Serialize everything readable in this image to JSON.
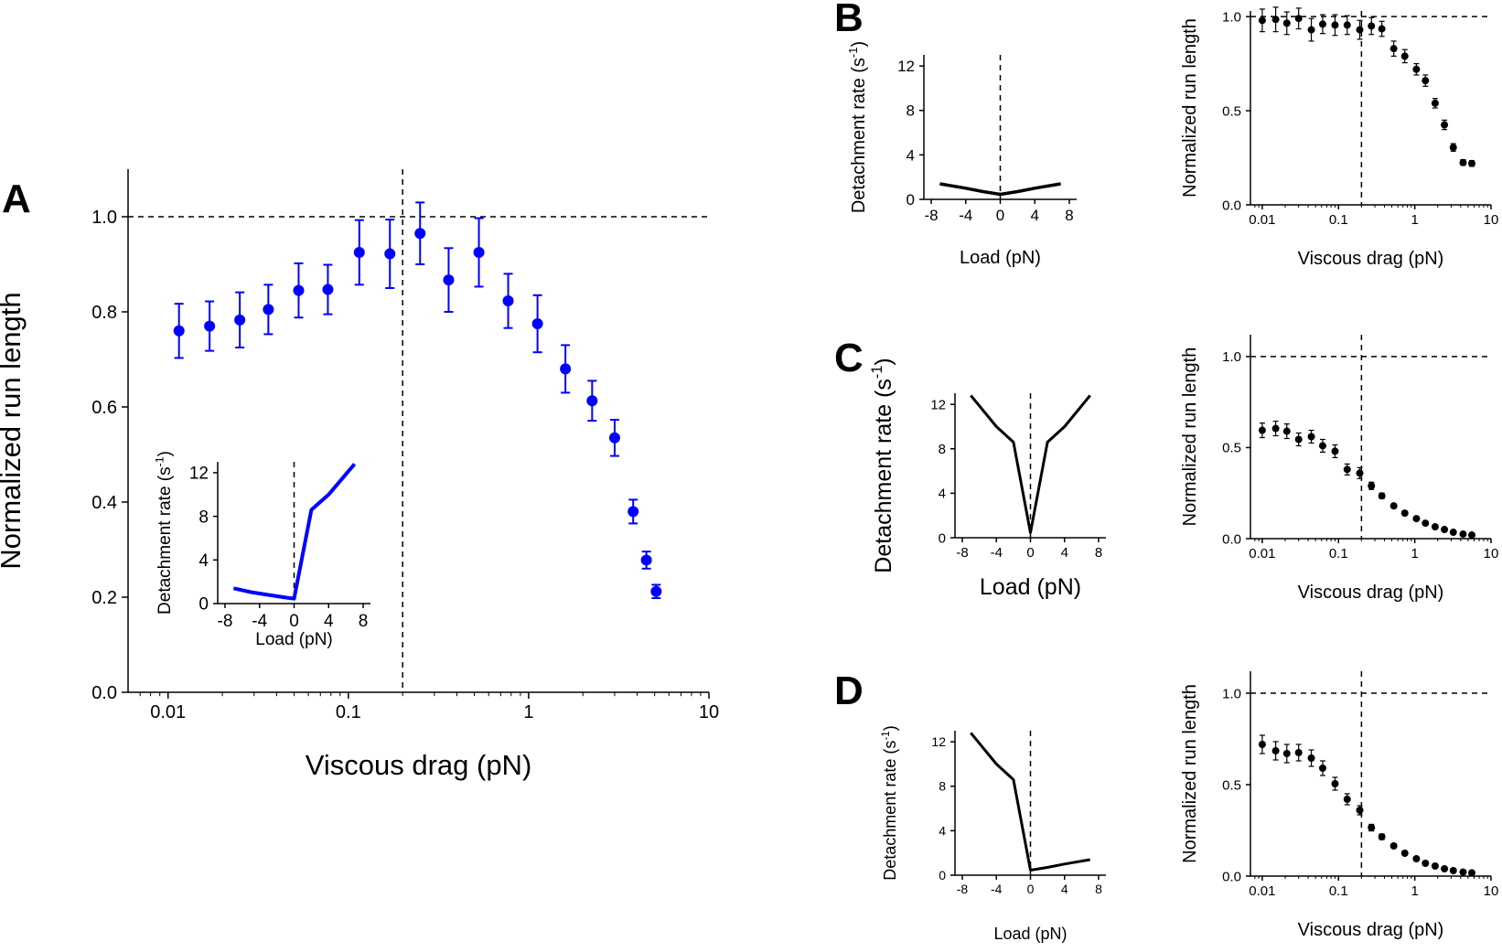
{
  "figure": {
    "panel_labels": [
      "A",
      "B",
      "C",
      "D"
    ]
  },
  "chart_data": [
    {
      "id": "A-main",
      "panel": "A",
      "type": "scatter",
      "color": "#0000ff",
      "title": "",
      "xlabel": "Viscous drag (pN)",
      "ylabel": "Normalized run length",
      "xscale": "log",
      "xlim": [
        0.006,
        10
      ],
      "ylim": [
        0,
        1.1
      ],
      "xticks": [
        0.01,
        0.1,
        1,
        10
      ],
      "xtick_labels": [
        "0.01",
        "0.1",
        "1",
        "10"
      ],
      "yticks": [
        0,
        0.2,
        0.4,
        0.6,
        0.8,
        1.0
      ],
      "ytick_labels": [
        "0.0",
        "0.2",
        "0.4",
        "0.6",
        "0.8",
        "1.0"
      ],
      "hline": 1.0,
      "vline": 0.2,
      "x": [
        0.0115,
        0.017,
        0.025,
        0.036,
        0.053,
        0.077,
        0.115,
        0.17,
        0.25,
        0.36,
        0.53,
        0.77,
        1.12,
        1.6,
        2.25,
        3.0,
        3.8,
        4.5,
        5.1
      ],
      "y": [
        0.76,
        0.77,
        0.783,
        0.805,
        0.845,
        0.847,
        0.925,
        0.922,
        0.965,
        0.867,
        0.925,
        0.823,
        0.775,
        0.68,
        0.613,
        0.535,
        0.38,
        0.278,
        0.212
      ],
      "err": [
        0.057,
        0.052,
        0.058,
        0.052,
        0.057,
        0.052,
        0.068,
        0.072,
        0.065,
        0.067,
        0.072,
        0.057,
        0.06,
        0.05,
        0.042,
        0.038,
        0.025,
        0.018,
        0.014
      ]
    },
    {
      "id": "A-inset",
      "panel": "A",
      "type": "line",
      "color": "#0000ff",
      "xlabel": "Load (pN)",
      "ylabel": "Detachment rate (s",
      "ylabel_sup": "-1",
      "ylabel_end": ")",
      "xlim": [
        -8,
        8
      ],
      "ylim": [
        0,
        13
      ],
      "xticks": [
        -8,
        -4,
        0,
        4,
        8
      ],
      "xtick_labels": [
        "-8",
        "-4",
        "0",
        "4",
        "8"
      ],
      "yticks": [
        0,
        4,
        8,
        12
      ],
      "ytick_labels": [
        "0",
        "4",
        "8",
        "12"
      ],
      "vline": 0,
      "x": [
        -7,
        -5,
        -3,
        -1,
        0,
        2,
        4,
        7
      ],
      "y": [
        1.4,
        1.05,
        0.8,
        0.55,
        0.45,
        8.6,
        10.0,
        12.8
      ]
    },
    {
      "id": "B-rate",
      "panel": "B",
      "type": "line",
      "color": "#000000",
      "xlabel": "Load (pN)",
      "ylabel": "Detachment rate (s",
      "ylabel_sup": "-1",
      "ylabel_end": ")",
      "xlim": [
        -8,
        8
      ],
      "ylim": [
        0,
        13
      ],
      "xticks": [
        -8,
        -4,
        0,
        4,
        8
      ],
      "xtick_labels": [
        "-8",
        "-4",
        "0",
        "4",
        "8"
      ],
      "yticks": [
        0,
        4,
        8,
        12
      ],
      "ytick_labels": [
        "0",
        "4",
        "8",
        "12"
      ],
      "vline": 0,
      "x": [
        -7,
        -4,
        -2,
        0,
        2,
        4,
        7
      ],
      "y": [
        1.4,
        1.0,
        0.7,
        0.45,
        0.7,
        1.0,
        1.4
      ]
    },
    {
      "id": "B-run",
      "panel": "B",
      "type": "scatter",
      "color": "#000000",
      "xlabel": "Viscous drag (pN)",
      "ylabel": "Normalized run length",
      "xscale": "log",
      "xlim": [
        0.007,
        10
      ],
      "ylim": [
        0,
        1.03
      ],
      "xticks": [
        0.01,
        0.1,
        1,
        10
      ],
      "xtick_labels": [
        "0.01",
        "0.1",
        "1",
        "10"
      ],
      "yticks": [
        0,
        0.5,
        1.0
      ],
      "ytick_labels": [
        "0.0",
        "0.5",
        "1.0"
      ],
      "hline": 1.0,
      "vline": 0.2,
      "x": [
        0.01,
        0.015,
        0.021,
        0.03,
        0.044,
        0.062,
        0.09,
        0.13,
        0.19,
        0.27,
        0.37,
        0.53,
        0.74,
        1.05,
        1.38,
        1.85,
        2.45,
        3.2,
        4.3,
        5.6
      ],
      "y": [
        0.98,
        0.985,
        0.965,
        0.99,
        0.93,
        0.96,
        0.955,
        0.955,
        0.93,
        0.95,
        0.935,
        0.83,
        0.79,
        0.72,
        0.66,
        0.54,
        0.425,
        0.305,
        0.225,
        0.22
      ],
      "err": [
        0.06,
        0.065,
        0.06,
        0.055,
        0.06,
        0.05,
        0.055,
        0.05,
        0.05,
        0.045,
        0.04,
        0.04,
        0.035,
        0.03,
        0.03,
        0.025,
        0.025,
        0.02,
        0.015,
        0.015
      ]
    },
    {
      "id": "C-rate",
      "panel": "C",
      "type": "line",
      "color": "#000000",
      "xlabel": "Load (pN)",
      "ylabel": "Detachment rate (s",
      "ylabel_sup": "-1",
      "ylabel_end": ")",
      "xlim": [
        -8,
        8
      ],
      "ylim": [
        0,
        13
      ],
      "xticks": [
        -8,
        -4,
        0,
        4,
        8
      ],
      "xtick_labels": [
        "-8",
        "-4",
        "0",
        "4",
        "8"
      ],
      "yticks": [
        0,
        4,
        8,
        12
      ],
      "ytick_labels": [
        "0",
        "4",
        "8",
        "12"
      ],
      "vline": 0,
      "x": [
        -7,
        -4,
        -2,
        0,
        2,
        4,
        7
      ],
      "y": [
        12.8,
        10.0,
        8.6,
        0.45,
        8.6,
        10.0,
        12.8
      ]
    },
    {
      "id": "C-run",
      "panel": "C",
      "type": "scatter",
      "color": "#000000",
      "xlabel": "Viscous drag (pN)",
      "ylabel": "Normalized run length",
      "xscale": "log",
      "xlim": [
        0.007,
        10
      ],
      "ylim": [
        0,
        1.12
      ],
      "xticks": [
        0.01,
        0.1,
        1,
        10
      ],
      "xtick_labels": [
        "0.01",
        "0.1",
        "1",
        "10"
      ],
      "yticks": [
        0,
        0.5,
        1.0
      ],
      "ytick_labels": [
        "0.0",
        "0.5",
        "1.0"
      ],
      "hline": 1.0,
      "vline": 0.2,
      "x": [
        0.01,
        0.015,
        0.021,
        0.03,
        0.044,
        0.062,
        0.09,
        0.13,
        0.19,
        0.27,
        0.37,
        0.53,
        0.74,
        1.05,
        1.38,
        1.85,
        2.45,
        3.2,
        4.3,
        5.6
      ],
      "y": [
        0.595,
        0.605,
        0.59,
        0.545,
        0.56,
        0.51,
        0.48,
        0.38,
        0.36,
        0.29,
        0.235,
        0.18,
        0.14,
        0.11,
        0.085,
        0.065,
        0.05,
        0.035,
        0.025,
        0.02
      ],
      "err": [
        0.04,
        0.04,
        0.04,
        0.035,
        0.035,
        0.035,
        0.035,
        0.03,
        0.03,
        0.02,
        0.015,
        0.012,
        0.01,
        0.01,
        0.008,
        0.006,
        0.005,
        0.004,
        0.004,
        0.003
      ]
    },
    {
      "id": "D-rate",
      "panel": "D",
      "type": "line",
      "color": "#000000",
      "xlabel": "Load (pN)",
      "ylabel": "Detachment rate (s",
      "ylabel_sup": "-1",
      "ylabel_end": ")",
      "xlim": [
        -8,
        8
      ],
      "ylim": [
        0,
        13
      ],
      "xticks": [
        -8,
        -4,
        0,
        4,
        8
      ],
      "xtick_labels": [
        "-8",
        "-4",
        "0",
        "4",
        "8"
      ],
      "yticks": [
        0,
        4,
        8,
        12
      ],
      "ytick_labels": [
        "0",
        "4",
        "8",
        "12"
      ],
      "vline": 0,
      "x": [
        -7,
        -4,
        -2,
        0,
        2,
        4,
        7
      ],
      "y": [
        12.8,
        10.0,
        8.6,
        0.45,
        0.7,
        1.0,
        1.4
      ]
    },
    {
      "id": "D-run",
      "panel": "D",
      "type": "scatter",
      "color": "#000000",
      "xlabel": "Viscous drag (pN)",
      "ylabel": "Normalized run length",
      "xscale": "log",
      "xlim": [
        0.007,
        10
      ],
      "ylim": [
        0,
        1.12
      ],
      "xticks": [
        0.01,
        0.1,
        1,
        10
      ],
      "xtick_labels": [
        "0.01",
        "0.1",
        "1",
        "10"
      ],
      "yticks": [
        0,
        0.5,
        1.0
      ],
      "ytick_labels": [
        "0.0",
        "0.5",
        "1.0"
      ],
      "hline": 1.0,
      "vline": 0.2,
      "x": [
        0.01,
        0.015,
        0.021,
        0.03,
        0.044,
        0.062,
        0.09,
        0.13,
        0.19,
        0.27,
        0.37,
        0.53,
        0.74,
        1.05,
        1.38,
        1.85,
        2.45,
        3.2,
        4.3,
        5.6
      ],
      "y": [
        0.72,
        0.685,
        0.67,
        0.675,
        0.645,
        0.59,
        0.505,
        0.42,
        0.36,
        0.265,
        0.215,
        0.165,
        0.125,
        0.095,
        0.07,
        0.055,
        0.04,
        0.03,
        0.022,
        0.018
      ],
      "err": [
        0.05,
        0.05,
        0.05,
        0.045,
        0.045,
        0.04,
        0.035,
        0.03,
        0.025,
        0.018,
        0.015,
        0.012,
        0.01,
        0.008,
        0.007,
        0.006,
        0.005,
        0.004,
        0.003,
        0.003
      ]
    }
  ]
}
